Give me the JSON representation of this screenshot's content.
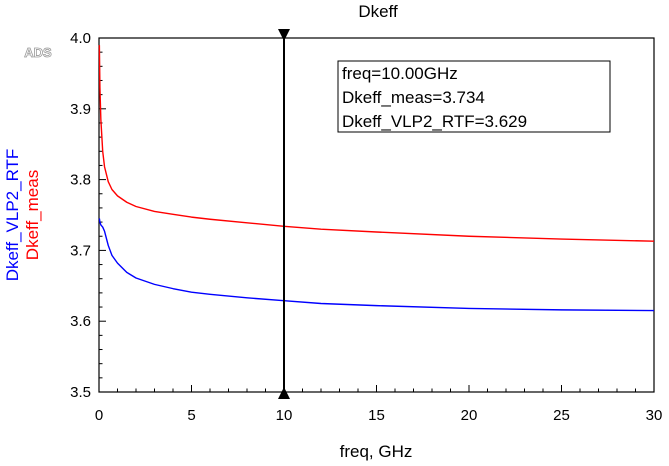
{
  "chart_data": {
    "type": "line",
    "title": "Dkeff",
    "xlabel": "freq, GHz",
    "watermark": "ADS",
    "xlim": [
      0,
      30
    ],
    "ylim": [
      3.5,
      4.0
    ],
    "xticks": [
      0,
      5,
      10,
      15,
      20,
      25,
      30
    ],
    "yticks": [
      "3.5",
      "3.6",
      "3.7",
      "3.8",
      "3.9",
      "4.0"
    ],
    "ylabels": [
      {
        "text": "Dkeff_VLP2_RTF",
        "color": "#0000ff"
      },
      {
        "text": "Dkeff_meas",
        "color": "#ff0000"
      }
    ],
    "series": [
      {
        "name": "Dkeff_meas",
        "color": "#ff0000",
        "x": [
          0.02,
          0.05,
          0.1,
          0.2,
          0.3,
          0.5,
          0.7,
          1,
          1.5,
          2,
          3,
          4,
          5,
          6,
          8,
          10,
          12,
          15,
          20,
          25,
          30
        ],
        "y": [
          3.99,
          3.93,
          3.885,
          3.84,
          3.818,
          3.797,
          3.786,
          3.777,
          3.768,
          3.762,
          3.755,
          3.751,
          3.747,
          3.744,
          3.739,
          3.734,
          3.73,
          3.726,
          3.72,
          3.716,
          3.713
        ]
      },
      {
        "name": "Dkeff_VLP2_RTF",
        "color": "#0000ff",
        "x": [
          0.02,
          0.05,
          0.1,
          0.2,
          0.3,
          0.5,
          0.7,
          1,
          1.5,
          2,
          3,
          4,
          5,
          6,
          8,
          10,
          12,
          15,
          20,
          25,
          30
        ],
        "y": [
          3.745,
          3.74,
          3.736,
          3.733,
          3.727,
          3.707,
          3.693,
          3.682,
          3.669,
          3.661,
          3.652,
          3.646,
          3.641,
          3.638,
          3.633,
          3.629,
          3.625,
          3.622,
          3.618,
          3.616,
          3.615
        ]
      }
    ],
    "marker": {
      "freq": 10.0,
      "readout": [
        "freq=10.00GHz",
        "Dkeff_meas=3.734",
        "Dkeff_VLP2_RTF=3.629"
      ]
    }
  }
}
